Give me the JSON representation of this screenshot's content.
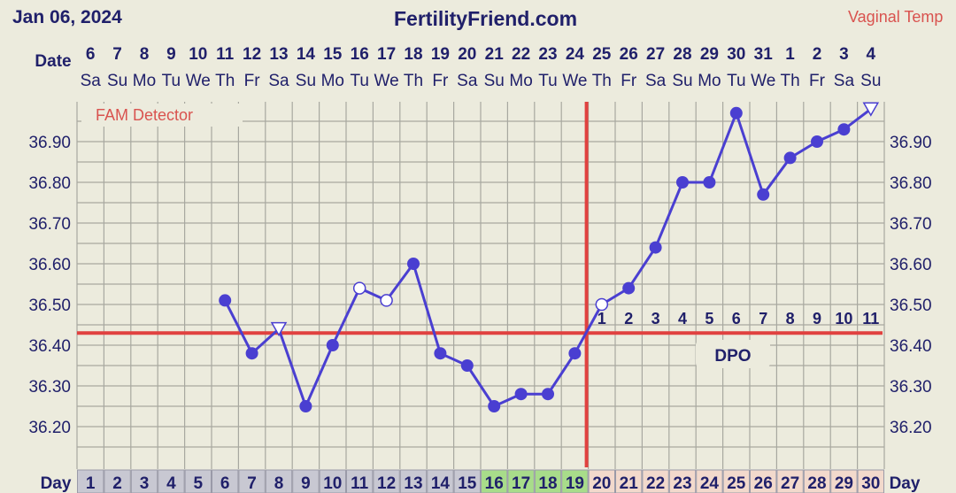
{
  "header": {
    "date": "Jan 06, 2024",
    "site": "FertilityFriend.com",
    "temp_type": "Vaginal Temp"
  },
  "labels": {
    "date_row": "Date",
    "day_row": "Day",
    "fam": "FAM Detector",
    "dpo": "DPO"
  },
  "colors": {
    "line": "#4a3fd1",
    "coverline": "#e0413f",
    "grid": "#a8a8a0",
    "plot_bg": "#ecebdd",
    "text": "#20206a",
    "fertile_day_bg": "#a8dc8a",
    "luteal_day_bg": "#f2d9cc",
    "day_bg": "#c8c8d2"
  },
  "chart_data": {
    "type": "line",
    "dates": [
      "6",
      "7",
      "8",
      "9",
      "10",
      "11",
      "12",
      "13",
      "14",
      "15",
      "16",
      "17",
      "18",
      "19",
      "20",
      "21",
      "22",
      "23",
      "24",
      "25",
      "26",
      "27",
      "28",
      "29",
      "30",
      "31",
      "1",
      "2",
      "3",
      "4"
    ],
    "weekdays": [
      "Sa",
      "Su",
      "Mo",
      "Tu",
      "We",
      "Th",
      "Fr",
      "Sa",
      "Su",
      "Mo",
      "Tu",
      "We",
      "Th",
      "Fr",
      "Sa",
      "Su",
      "Mo",
      "Tu",
      "We",
      "Th",
      "Fr",
      "Sa",
      "Su",
      "Mo",
      "Tu",
      "We",
      "Th",
      "Fr",
      "Sa",
      "Su"
    ],
    "days": [
      1,
      2,
      3,
      4,
      5,
      6,
      7,
      8,
      9,
      10,
      11,
      12,
      13,
      14,
      15,
      16,
      17,
      18,
      19,
      20,
      21,
      22,
      23,
      24,
      25,
      26,
      27,
      28,
      29,
      30
    ],
    "temps": [
      null,
      null,
      null,
      null,
      null,
      36.51,
      36.38,
      36.44,
      36.25,
      36.4,
      36.54,
      36.51,
      36.6,
      36.38,
      36.35,
      36.25,
      36.28,
      36.28,
      36.38,
      36.5,
      36.54,
      36.64,
      36.8,
      36.8,
      36.97,
      36.77,
      36.86,
      36.9,
      36.93,
      36.98
    ],
    "markers": [
      "",
      "",
      "",
      "",
      "",
      "filled",
      "filled",
      "triangle",
      "filled",
      "filled",
      "open",
      "open",
      "filled",
      "filled",
      "filled",
      "filled",
      "filled",
      "filled",
      "filled",
      "open",
      "filled",
      "filled",
      "filled",
      "filled",
      "filled",
      "filled",
      "filled",
      "filled",
      "filled",
      "triangle"
    ],
    "y_ticks": [
      "36.90",
      "36.80",
      "36.70",
      "36.60",
      "36.50",
      "36.40",
      "36.30",
      "36.20"
    ],
    "ylim": [
      36.13,
      36.99
    ],
    "coverline": 36.43,
    "ovulation_day": 19,
    "fertile_days": [
      16,
      17,
      18,
      19
    ],
    "dpo_labels": [
      "1",
      "2",
      "3",
      "4",
      "5",
      "6",
      "7",
      "8",
      "9",
      "10",
      "11"
    ],
    "grid": true
  }
}
